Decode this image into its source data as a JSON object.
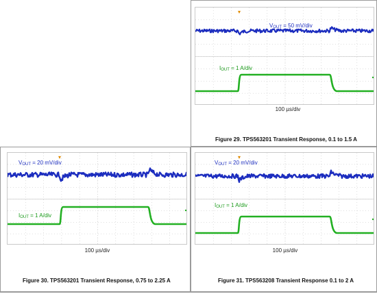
{
  "colors": {
    "voltage": "#1c2dbf",
    "current": "#22b022",
    "trigger": "#e08a00",
    "grid": "#bdbdbd",
    "frame": "#9a9a9a"
  },
  "figures": [
    {
      "id": "fig29",
      "v_prefix": "V",
      "v_sub": "OUT",
      "v_scale": " = 50 mV/div",
      "i_prefix": "I",
      "i_sub": "OUT",
      "i_scale": " = 1 A/div",
      "timebase": "100 µs/div",
      "caption": "Figure 29. TPS563201 Transient Response, 0.1 to 1.5 A",
      "trigger_marker": "▾"
    },
    {
      "id": "fig30",
      "v_prefix": "V",
      "v_sub": "OUT",
      "v_scale": " = 20 mV/div",
      "i_prefix": "I",
      "i_sub": "OUT",
      "i_scale": " = 1 A/div",
      "timebase": "100 µs/div",
      "caption": "Figure 30. TPS563201 Transient Response, 0.75 to 2.25 A",
      "trigger_marker": "▾"
    },
    {
      "id": "fig31",
      "v_prefix": "V",
      "v_sub": "OUT",
      "v_scale": " = 20 mV/div",
      "i_prefix": "I",
      "i_sub": "OUT",
      "i_scale": " = 1 A/div",
      "timebase": "100 µs/div",
      "caption": "Figure 31. TPS563208 Transient Response 0.1 to 2 A",
      "trigger_marker": "▾"
    }
  ]
}
